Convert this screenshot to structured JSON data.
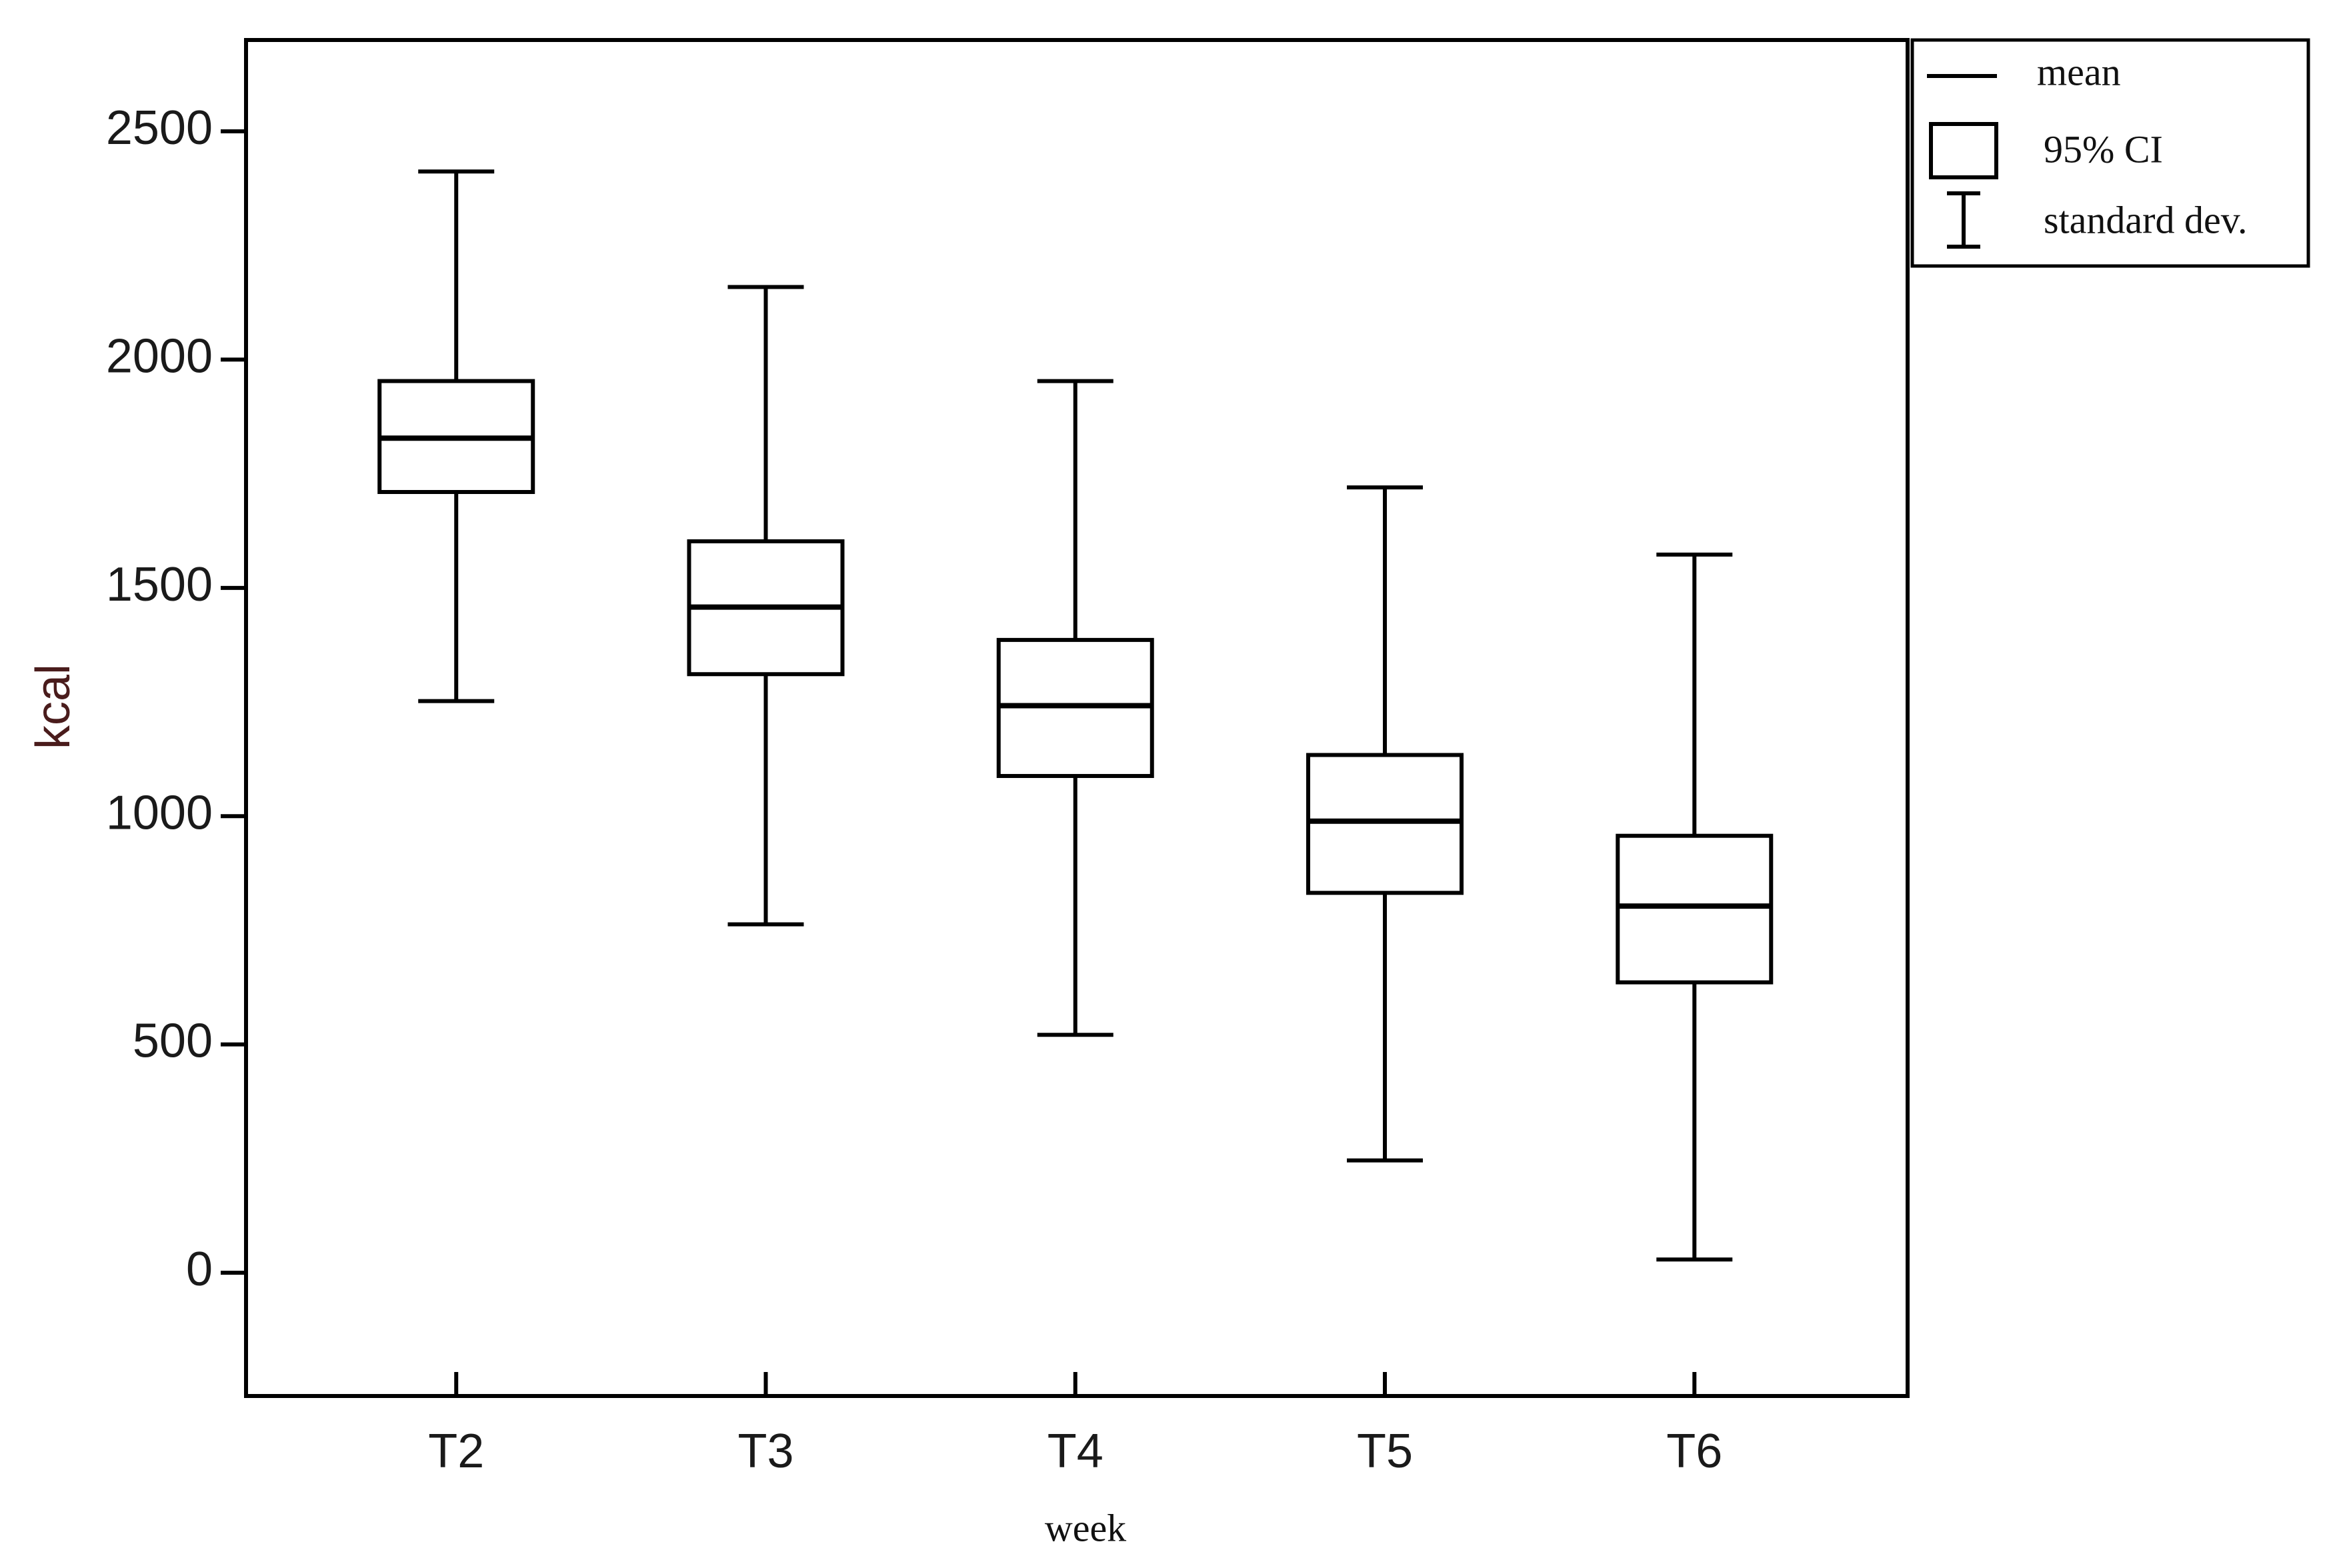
{
  "chart_data": {
    "type": "box",
    "x_label": "week",
    "y_label": "kcal",
    "categories": [
      "T2",
      "T3",
      "T4",
      "T5",
      "T6"
    ],
    "mean": [
      1828,
      1458,
      1242,
      989,
      803
    ],
    "ci_low": [
      1710,
      1311,
      1088,
      832,
      636
    ],
    "ci_high": [
      1953,
      1602,
      1386,
      1134,
      957
    ],
    "sd_low": [
      1252,
      763,
      521,
      246,
      29
    ],
    "sd_high": [
      2412,
      2159,
      1953,
      1720,
      1573
    ],
    "legend": [
      "mean",
      "95% CI",
      "standard dev."
    ],
    "ylim": [
      -270,
      2700
    ],
    "yticks": [
      0,
      500,
      1000,
      1500,
      2000,
      2500
    ],
    "color": "#000000"
  }
}
